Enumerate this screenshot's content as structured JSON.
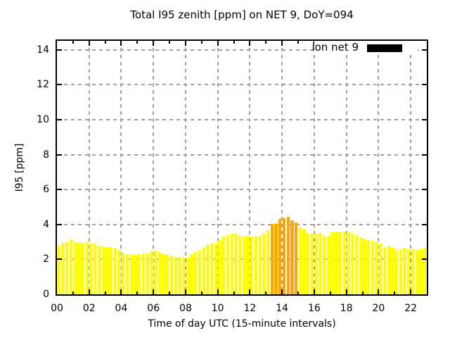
{
  "chart_data": {
    "type": "bar",
    "title": "Total I95 zenith [ppm] on NET 9, DoY=094",
    "xlabel": "Time of day UTC (15-minute intervals)",
    "ylabel": "I95 [ppm]",
    "xlim_hours": [
      0,
      23
    ],
    "ylim": [
      0,
      14
    ],
    "grid": true,
    "x_tick_labels": [
      "00",
      "02",
      "04",
      "06",
      "08",
      "10",
      "12",
      "14",
      "16",
      "18",
      "20",
      "22"
    ],
    "y_tick_labels": [
      "0",
      "2",
      "4",
      "6",
      "8",
      "10",
      "12",
      "14"
    ],
    "bar_interval_minutes": 15,
    "legend": {
      "label": "ion net 9",
      "swatch_color": "#000000",
      "position": "top-right"
    },
    "colors": {
      "normal": "#ffff00",
      "highlight": "#ffa500",
      "grid": "#a0a0a0",
      "border": "#000000"
    },
    "highlight_indices": [
      53,
      54,
      55,
      56,
      57,
      58,
      59
    ],
    "times": [
      "00:00",
      "00:15",
      "00:30",
      "00:45",
      "01:00",
      "01:15",
      "01:30",
      "01:45",
      "02:00",
      "02:15",
      "02:30",
      "02:45",
      "03:00",
      "03:15",
      "03:30",
      "03:45",
      "04:00",
      "04:15",
      "04:30",
      "04:45",
      "05:00",
      "05:15",
      "05:30",
      "05:45",
      "06:00",
      "06:15",
      "06:30",
      "06:45",
      "07:00",
      "07:15",
      "07:30",
      "07:45",
      "08:00",
      "08:15",
      "08:30",
      "08:45",
      "09:00",
      "09:15",
      "09:30",
      "09:45",
      "10:00",
      "10:15",
      "10:30",
      "10:45",
      "11:00",
      "11:15",
      "11:30",
      "11:45",
      "12:00",
      "12:15",
      "12:30",
      "12:45",
      "13:00",
      "13:15",
      "13:30",
      "13:45",
      "14:00",
      "14:15",
      "14:30",
      "14:45",
      "15:00",
      "15:15",
      "15:30",
      "15:45",
      "16:00",
      "16:15",
      "16:30",
      "16:45",
      "17:00",
      "17:15",
      "17:30",
      "17:45",
      "18:00",
      "18:15",
      "18:30",
      "18:45",
      "19:00",
      "19:15",
      "19:30",
      "19:45",
      "20:00",
      "20:15",
      "20:30",
      "20:45",
      "21:00",
      "21:15",
      "21:30",
      "21:45",
      "22:00",
      "22:15",
      "22:30",
      "22:45"
    ],
    "values": [
      2.8,
      2.95,
      3.0,
      3.15,
      3.0,
      2.95,
      2.95,
      3.0,
      2.9,
      2.9,
      2.8,
      2.75,
      2.7,
      2.7,
      2.65,
      2.5,
      2.35,
      2.3,
      2.3,
      2.25,
      2.3,
      2.35,
      2.35,
      2.45,
      2.5,
      2.4,
      2.3,
      2.3,
      2.2,
      2.15,
      2.15,
      2.1,
      2.1,
      2.25,
      2.4,
      2.5,
      2.65,
      2.85,
      2.9,
      2.9,
      3.1,
      3.3,
      3.4,
      3.45,
      3.45,
      3.35,
      3.3,
      3.35,
      3.3,
      3.35,
      3.35,
      3.45,
      3.65,
      4.05,
      4.05,
      4.3,
      4.35,
      4.45,
      4.25,
      4.1,
      3.85,
      3.7,
      3.45,
      3.45,
      3.45,
      3.5,
      3.35,
      3.35,
      3.55,
      3.6,
      3.6,
      3.6,
      3.55,
      3.45,
      3.4,
      3.25,
      3.2,
      3.1,
      3.05,
      3.0,
      2.9,
      2.7,
      2.8,
      2.65,
      2.55,
      2.6,
      2.65,
      2.6,
      2.6,
      2.5,
      2.6,
      2.7
    ]
  }
}
